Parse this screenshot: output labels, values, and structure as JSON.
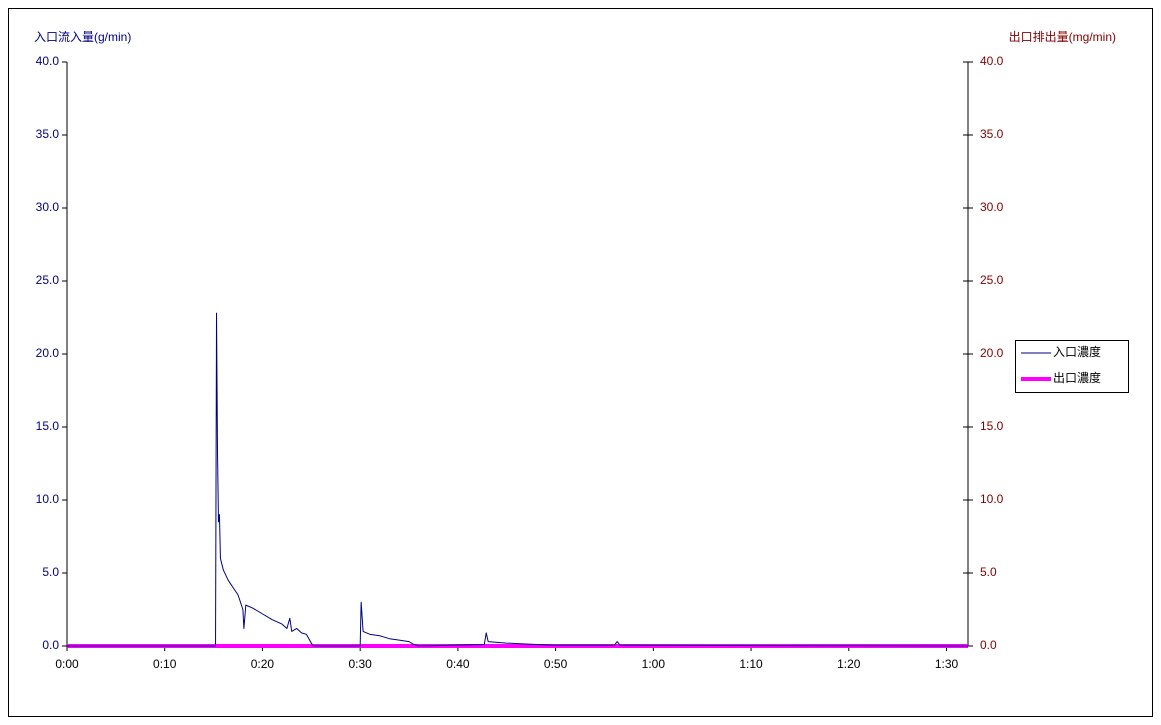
{
  "chart_data": {
    "type": "line",
    "y_label": "入口流入量(g/min)",
    "y2_label": "出口排出量(mg/min)",
    "x": [
      0,
      15.2,
      15.3,
      15.4,
      15.5,
      15.6,
      15.7,
      16,
      16.5,
      17,
      17.5,
      18,
      18.1,
      18.3,
      19,
      20,
      21,
      22,
      22.5,
      22.8,
      23,
      23.5,
      24,
      24.5,
      25,
      25.2,
      30,
      30.1,
      30.3,
      31,
      32,
      33,
      34,
      35,
      35.5,
      36,
      42.7,
      42.9,
      43.1,
      45,
      48,
      50,
      56,
      56.3,
      56.6,
      92.2
    ],
    "series": [
      {
        "name": "入口濃度",
        "color": "#000080",
        "width": 1,
        "values": [
          0,
          0,
          22.8,
          13.4,
          8.5,
          9.0,
          6.0,
          5.2,
          4.5,
          4.0,
          3.5,
          2.5,
          1.2,
          2.8,
          2.6,
          2.2,
          1.8,
          1.5,
          1.2,
          1.9,
          1.0,
          1.2,
          0.9,
          0.8,
          0.2,
          0,
          0,
          3.0,
          1.0,
          0.8,
          0.7,
          0.5,
          0.4,
          0.3,
          0.1,
          0,
          0.1,
          0.9,
          0.3,
          0.2,
          0.1,
          0.05,
          0.05,
          0.3,
          0.05,
          0
        ]
      },
      {
        "name": "出口濃度",
        "color": "#ff00ff",
        "width": 4,
        "axis": "y2",
        "values": [
          0,
          0,
          0,
          0,
          0,
          0,
          0,
          0,
          0,
          0,
          0,
          0,
          0,
          0,
          0,
          0,
          0,
          0,
          0,
          0,
          0,
          0,
          0,
          0,
          0,
          0,
          0,
          0,
          0,
          0,
          0,
          0,
          0,
          0,
          0,
          0,
          0,
          0,
          0,
          0,
          0,
          0,
          0,
          0,
          0,
          0
        ]
      }
    ],
    "xlim": [
      0,
      92.2
    ],
    "xticks": [
      {
        "value": 0,
        "label": "0:00"
      },
      {
        "value": 10,
        "label": "0:10"
      },
      {
        "value": 20,
        "label": "0:20"
      },
      {
        "value": 30,
        "label": "0:30"
      },
      {
        "value": 40,
        "label": "0:40"
      },
      {
        "value": 50,
        "label": "0:50"
      },
      {
        "value": 60,
        "label": "1:00"
      },
      {
        "value": 70,
        "label": "1:10"
      },
      {
        "value": 80,
        "label": "1:20"
      },
      {
        "value": 90,
        "label": "1:30"
      }
    ],
    "ylim": [
      0,
      40
    ],
    "yticks": [
      {
        "value": 0,
        "label": "0.0"
      },
      {
        "value": 5,
        "label": "5.0"
      },
      {
        "value": 10,
        "label": "10.0"
      },
      {
        "value": 15,
        "label": "15.0"
      },
      {
        "value": 20,
        "label": "20.0"
      },
      {
        "value": 25,
        "label": "25.0"
      },
      {
        "value": 30,
        "label": "30.0"
      },
      {
        "value": 35,
        "label": "35.0"
      },
      {
        "value": 40,
        "label": "40.0"
      }
    ],
    "y2lim": [
      0,
      40
    ],
    "y2ticks": [
      {
        "value": 0,
        "label": "0.0"
      },
      {
        "value": 5,
        "label": "5.0"
      },
      {
        "value": 10,
        "label": "10.0"
      },
      {
        "value": 15,
        "label": "15.0"
      },
      {
        "value": 20,
        "label": "20.0"
      },
      {
        "value": 25,
        "label": "25.0"
      },
      {
        "value": 30,
        "label": "30.0"
      },
      {
        "value": 35,
        "label": "35.0"
      },
      {
        "value": 40,
        "label": "40.0"
      }
    ],
    "y_color": "#000080",
    "y2_color": "#800000",
    "legend": "right"
  }
}
